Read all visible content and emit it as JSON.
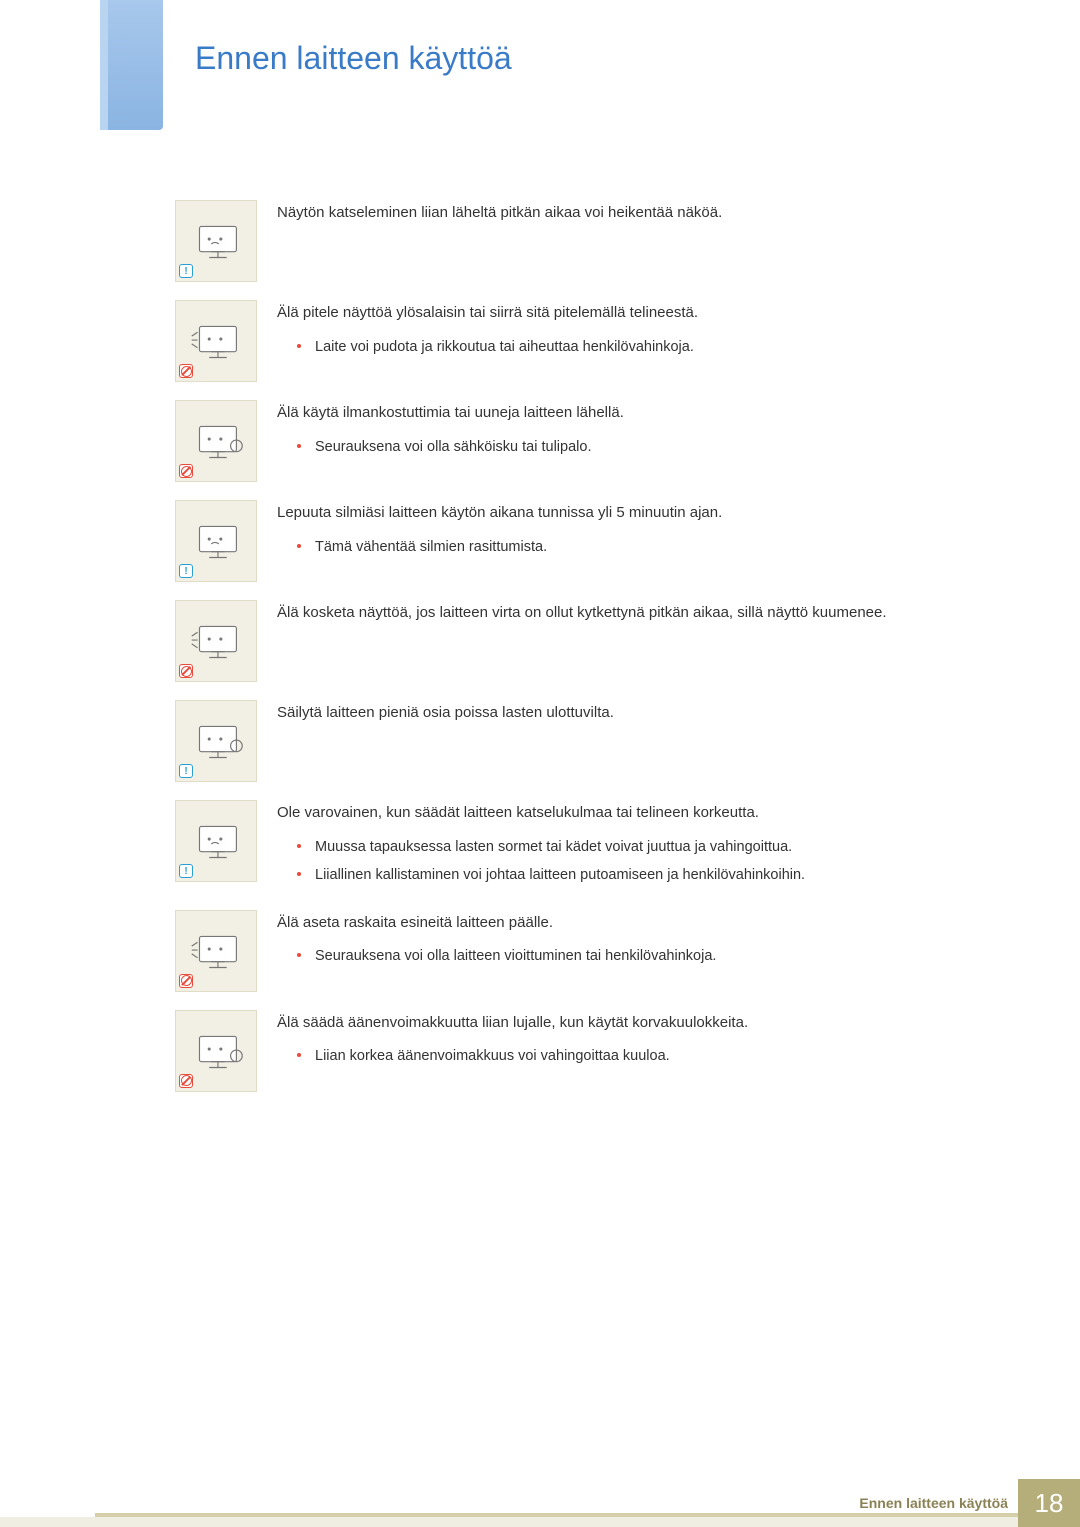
{
  "page": {
    "title": "Ennen laitteen käyttöä",
    "footer_label": "Ennen laitteen käyttöä",
    "page_number": "18"
  },
  "colors": {
    "title_color": "#3a7bc8",
    "bullet_color": "#e74c3c",
    "icon_bg": "#f2efe4",
    "footer_accent": "#b6ae7a",
    "info_badge": "#2a9fd6",
    "prohibit_badge": "#e74c3c"
  },
  "items": [
    {
      "badge": "info",
      "heading": "Näytön katseleminen liian läheltä pitkän aikaa voi heikentää näköä.",
      "bullets": []
    },
    {
      "badge": "prohibit",
      "heading": "Älä pitele näyttöä ylösalaisin tai siirrä sitä pitelemällä telineestä.",
      "bullets": [
        "Laite voi pudota ja rikkoutua tai aiheuttaa henkilövahinkoja."
      ]
    },
    {
      "badge": "prohibit",
      "heading": "Älä käytä ilmankostuttimia tai uuneja laitteen lähellä.",
      "bullets": [
        "Seurauksena voi olla sähköisku tai tulipalo."
      ]
    },
    {
      "badge": "info",
      "heading": "Lepuuta silmiäsi laitteen käytön aikana tunnissa yli 5 minuutin ajan.",
      "bullets": [
        "Tämä vähentää silmien rasittumista."
      ]
    },
    {
      "badge": "prohibit",
      "heading": "Älä kosketa näyttöä, jos laitteen virta on ollut kytkettynä pitkän aikaa, sillä näyttö kuumenee.",
      "bullets": []
    },
    {
      "badge": "info",
      "heading": "Säilytä laitteen pieniä osia poissa lasten ulottuvilta.",
      "bullets": []
    },
    {
      "badge": "info",
      "heading": "Ole varovainen, kun säädät laitteen katselukulmaa tai telineen korkeutta.",
      "bullets": [
        "Muussa tapauksessa lasten sormet tai kädet voivat juuttua ja vahingoittua.",
        "Liiallinen kallistaminen voi johtaa laitteen putoamiseen ja henkilövahinkoihin."
      ]
    },
    {
      "badge": "prohibit",
      "heading": "Älä aseta raskaita esineitä laitteen päälle.",
      "bullets": [
        "Seurauksena voi olla laitteen vioittuminen tai henkilövahinkoja."
      ]
    },
    {
      "badge": "prohibit",
      "heading": "Älä säädä äänenvoimakkuutta liian lujalle, kun käytät korvakuulokkeita.",
      "bullets": [
        "Liian korkea äänenvoimakkuus voi vahingoittaa kuuloa."
      ]
    }
  ]
}
